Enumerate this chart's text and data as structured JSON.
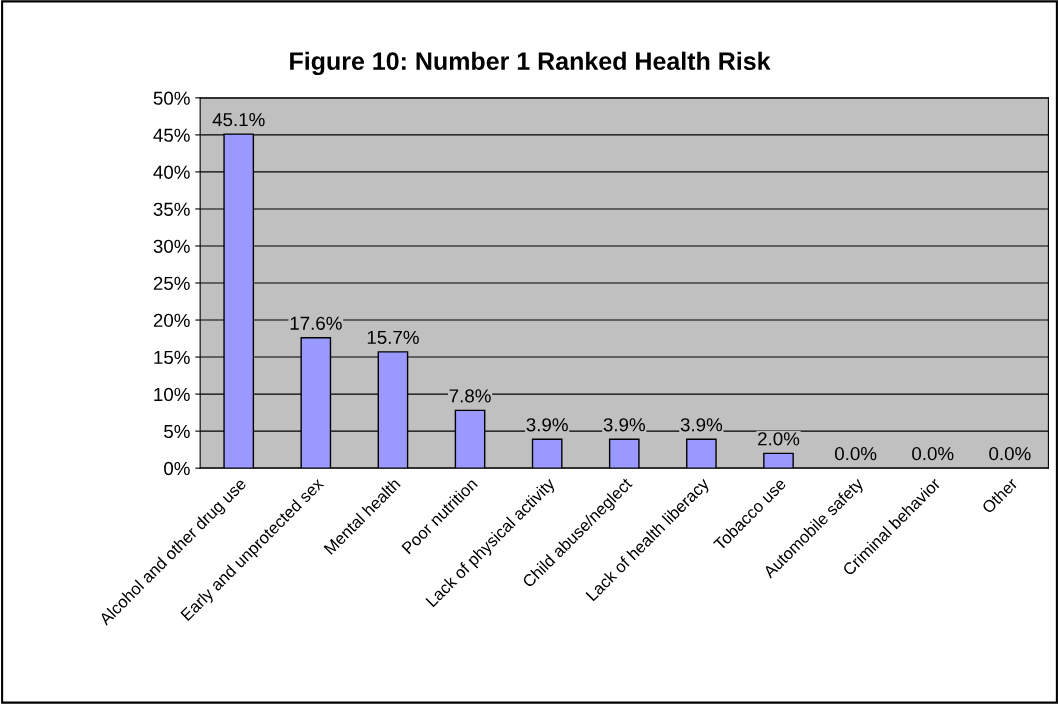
{
  "chart_data": {
    "type": "bar",
    "title": "Figure 10: Number 1 Ranked Health Risk",
    "categories": [
      "Alcohol and other drug use",
      "Early and unprotected sex",
      "Mental health",
      "Poor nutrition",
      "Lack of physical activity",
      "Child abuse/neglect",
      "Lack of health liberacy",
      "Tobacco use",
      "Automobile safety",
      "Criminal behavior",
      "Other"
    ],
    "values": [
      45.1,
      17.6,
      15.7,
      7.8,
      3.9,
      3.9,
      3.9,
      2.0,
      0.0,
      0.0,
      0.0
    ],
    "value_labels": [
      "45.1%",
      "17.6%",
      "15.7%",
      "7.8%",
      "3.9%",
      "3.9%",
      "3.9%",
      "2.0%",
      "0.0%",
      "0.0%",
      "0.0%"
    ],
    "color": "#9999ff",
    "ylim": [
      0,
      50
    ],
    "yticks": [
      {
        "value": 0,
        "label": "0%"
      },
      {
        "value": 5,
        "label": "5%"
      },
      {
        "value": 10,
        "label": "10%"
      },
      {
        "value": 15,
        "label": "15%"
      },
      {
        "value": 20,
        "label": "20%"
      },
      {
        "value": 25,
        "label": "25%"
      },
      {
        "value": 30,
        "label": "30%"
      },
      {
        "value": 35,
        "label": "35%"
      },
      {
        "value": 40,
        "label": "40%"
      },
      {
        "value": 45,
        "label": "45%"
      },
      {
        "value": 50,
        "label": "50%"
      }
    ],
    "grid": "y",
    "legend": false
  }
}
